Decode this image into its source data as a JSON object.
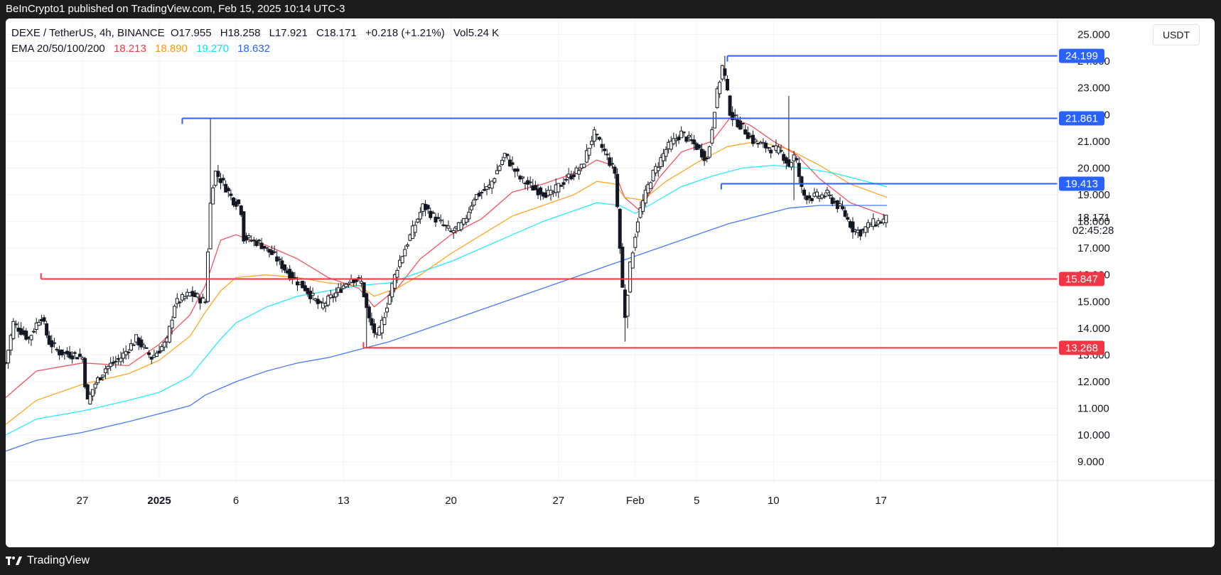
{
  "header": {
    "published": "BeInCrypto1 published on TradingView.com, Feb 15, 2025 10:14 UTC-3"
  },
  "footer": {
    "brand": "TradingView"
  },
  "currency_button": "USDT",
  "legend": {
    "symbol": "DEXE / TetherUS, 4h, BINANCE",
    "open_label": "O",
    "open": "17.955",
    "high_label": "H",
    "high": "18.258",
    "low_label": "L",
    "low": "17.921",
    "close_label": "C",
    "close": "18.171",
    "change": "+0.218 (+1.21%)",
    "volume_label": "Vol",
    "volume": "5.24 K",
    "ema_label": "EMA 20/50/100/200",
    "ema20": "18.213",
    "ema50": "18.890",
    "ema100": "19.270",
    "ema200": "18.632"
  },
  "colors": {
    "ema20": "#f23645",
    "ema50": "#ff9800",
    "ema100": "#00e5ff",
    "ema200": "#2962ff",
    "resistance": "#2962ff",
    "support": "#f23645",
    "candle": "#131722"
  },
  "price_axis": {
    "current_price": "18.171",
    "countdown": "02:45:28"
  },
  "chart_data": {
    "type": "candlestick",
    "title": "DEXE / TetherUS, 4h, BINANCE",
    "ylim": [
      8.3,
      25.6
    ],
    "y_ticks": [
      "9.000",
      "10.000",
      "11.000",
      "12.000",
      "13.000",
      "14.000",
      "15.000",
      "16.000",
      "17.000",
      "18.000",
      "19.000",
      "20.000",
      "21.000",
      "22.000",
      "23.000",
      "24.000",
      "25.000"
    ],
    "x_ticks": [
      "27",
      "2025",
      "6",
      "13",
      "20",
      "27",
      "Feb",
      "5",
      "10",
      "17"
    ],
    "x_tick_days": [
      -5,
      0,
      5,
      12,
      19,
      26,
      31,
      35,
      40,
      47
    ],
    "xlim_days": [
      -10,
      58.5
    ],
    "grid": true,
    "levels": [
      {
        "label": "24.199",
        "value": 24.199,
        "type": "resistance",
        "from_day": 37.0
      },
      {
        "label": "21.861",
        "value": 21.861,
        "type": "resistance",
        "from_day": 1.5
      },
      {
        "label": "19.413",
        "value": 19.413,
        "type": "resistance",
        "from_day": 36.6
      },
      {
        "label": "15.847",
        "value": 15.847,
        "type": "support",
        "from_day": -7.7
      },
      {
        "label": "13.268",
        "value": 13.268,
        "type": "support",
        "from_day": 13.3
      }
    ],
    "price_anchors": [
      [
        -10,
        12.7
      ],
      [
        -9.5,
        14.2
      ],
      [
        -8.5,
        13.6
      ],
      [
        -7.7,
        14.5
      ],
      [
        -7.2,
        13.5
      ],
      [
        -6.5,
        13.1
      ],
      [
        -5.5,
        13.0
      ],
      [
        -5.0,
        12.9
      ],
      [
        -4.7,
        11.2
      ],
      [
        -4.2,
        11.9
      ],
      [
        -3.5,
        12.5
      ],
      [
        -2.5,
        12.9
      ],
      [
        -1.5,
        13.6
      ],
      [
        -0.5,
        12.9
      ],
      [
        0.5,
        13.5
      ],
      [
        1.0,
        14.9
      ],
      [
        2.0,
        15.3
      ],
      [
        3.0,
        15.0
      ],
      [
        3.3,
        18.5
      ],
      [
        3.6,
        19.9
      ],
      [
        4.2,
        19.4
      ],
      [
        4.8,
        18.8
      ],
      [
        5.3,
        18.6
      ],
      [
        5.5,
        17.4
      ],
      [
        6.5,
        17.2
      ],
      [
        7.5,
        16.7
      ],
      [
        8.5,
        16.0
      ],
      [
        9.5,
        15.5
      ],
      [
        10.5,
        14.8
      ],
      [
        11.5,
        15.3
      ],
      [
        12.5,
        15.9
      ],
      [
        13.2,
        15.7
      ],
      [
        13.6,
        14.4
      ],
      [
        14.2,
        13.6
      ],
      [
        14.6,
        14.4
      ],
      [
        15.5,
        16.3
      ],
      [
        16.3,
        17.4
      ],
      [
        17.2,
        18.6
      ],
      [
        18.0,
        18.1
      ],
      [
        19.0,
        17.6
      ],
      [
        19.8,
        17.9
      ],
      [
        20.5,
        18.9
      ],
      [
        21.5,
        19.3
      ],
      [
        22.5,
        20.5
      ],
      [
        23.5,
        19.6
      ],
      [
        24.5,
        19.2
      ],
      [
        25.5,
        19.0
      ],
      [
        26.5,
        19.6
      ],
      [
        27.5,
        20.0
      ],
      [
        28.3,
        21.3
      ],
      [
        29.0,
        20.6
      ],
      [
        29.7,
        19.8
      ],
      [
        30.0,
        17.0
      ],
      [
        30.3,
        14.3
      ],
      [
        30.7,
        16.5
      ],
      [
        31.2,
        18.2
      ],
      [
        32.0,
        19.6
      ],
      [
        33.0,
        20.7
      ],
      [
        34.0,
        21.3
      ],
      [
        35.0,
        20.8
      ],
      [
        35.7,
        20.3
      ],
      [
        36.2,
        22.4
      ],
      [
        36.7,
        23.9
      ],
      [
        37.2,
        22.0
      ],
      [
        38.0,
        21.5
      ],
      [
        38.7,
        21.0
      ],
      [
        39.5,
        20.8
      ],
      [
        40.5,
        20.6
      ],
      [
        41.0,
        20.1
      ],
      [
        41.4,
        20.5
      ],
      [
        41.9,
        19.0
      ],
      [
        42.5,
        18.9
      ],
      [
        43.5,
        19.0
      ],
      [
        44.5,
        18.4
      ],
      [
        45.2,
        17.7
      ],
      [
        45.7,
        17.6
      ],
      [
        46.3,
        17.9
      ],
      [
        47.0,
        18.0
      ],
      [
        47.4,
        18.1
      ]
    ],
    "spikes": [
      {
        "day": 3.35,
        "high": 21.861
      },
      {
        "day": 30.3,
        "low": 13.5
      },
      {
        "day": 30.5,
        "low": 14.0
      },
      {
        "day": 36.8,
        "high": 24.199
      },
      {
        "day": 41.05,
        "high": 22.7
      },
      {
        "day": 41.3,
        "low": 18.8
      },
      {
        "day": 13.5,
        "low": 13.268
      }
    ],
    "ema": {
      "ema20": {
        "name": "EMA 20",
        "points": [
          [
            -10,
            11.4
          ],
          [
            -8,
            12.4
          ],
          [
            -5,
            12.7
          ],
          [
            -2,
            12.6
          ],
          [
            0,
            13.4
          ],
          [
            2,
            14.5
          ],
          [
            3,
            15.6
          ],
          [
            4,
            17.3
          ],
          [
            5,
            17.5
          ],
          [
            7,
            17.1
          ],
          [
            9,
            16.6
          ],
          [
            11,
            15.9
          ],
          [
            13,
            15.5
          ],
          [
            14,
            14.8
          ],
          [
            15.5,
            15.5
          ],
          [
            17,
            16.6
          ],
          [
            19,
            17.5
          ],
          [
            21,
            18.1
          ],
          [
            23,
            19.1
          ],
          [
            25,
            19.4
          ],
          [
            27,
            19.8
          ],
          [
            28.5,
            20.3
          ],
          [
            29.5,
            20.1
          ],
          [
            30.3,
            18.9
          ],
          [
            31.3,
            18.4
          ],
          [
            32.5,
            19.6
          ],
          [
            34,
            20.6
          ],
          [
            36,
            21.0
          ],
          [
            37.2,
            21.9
          ],
          [
            38.5,
            21.6
          ],
          [
            40,
            21.0
          ],
          [
            41.5,
            20.5
          ],
          [
            43,
            19.6
          ],
          [
            45,
            18.7
          ],
          [
            47.4,
            18.2
          ]
        ]
      },
      "ema50": {
        "name": "EMA 50",
        "points": [
          [
            -10,
            10.4
          ],
          [
            -8,
            11.3
          ],
          [
            -5,
            11.9
          ],
          [
            -2,
            12.3
          ],
          [
            0,
            12.8
          ],
          [
            2,
            13.7
          ],
          [
            3,
            14.6
          ],
          [
            4,
            15.4
          ],
          [
            5,
            15.9
          ],
          [
            7,
            16.0
          ],
          [
            9,
            15.9
          ],
          [
            11,
            15.7
          ],
          [
            13,
            15.6
          ],
          [
            14,
            15.2
          ],
          [
            15.5,
            15.5
          ],
          [
            17,
            16.0
          ],
          [
            19,
            16.8
          ],
          [
            21,
            17.5
          ],
          [
            23,
            18.2
          ],
          [
            25,
            18.6
          ],
          [
            27,
            19.0
          ],
          [
            28.5,
            19.5
          ],
          [
            29.7,
            19.4
          ],
          [
            30.3,
            18.9
          ],
          [
            31.5,
            18.8
          ],
          [
            33,
            19.5
          ],
          [
            35,
            20.2
          ],
          [
            37,
            20.8
          ],
          [
            39,
            21.0
          ],
          [
            41,
            20.7
          ],
          [
            43,
            20.1
          ],
          [
            45,
            19.4
          ],
          [
            47.4,
            18.9
          ]
        ]
      },
      "ema100": {
        "name": "EMA 100",
        "points": [
          [
            -10,
            10.0
          ],
          [
            -8,
            10.6
          ],
          [
            -5,
            10.9
          ],
          [
            -2,
            11.3
          ],
          [
            0,
            11.6
          ],
          [
            2,
            12.2
          ],
          [
            3,
            12.9
          ],
          [
            4,
            13.6
          ],
          [
            5,
            14.2
          ],
          [
            7,
            14.8
          ],
          [
            9,
            15.2
          ],
          [
            11,
            15.4
          ],
          [
            13,
            15.6
          ],
          [
            15,
            15.7
          ],
          [
            17,
            16.1
          ],
          [
            19,
            16.5
          ],
          [
            21,
            17.0
          ],
          [
            23,
            17.5
          ],
          [
            25,
            18.0
          ],
          [
            27,
            18.4
          ],
          [
            28.5,
            18.7
          ],
          [
            30,
            18.6
          ],
          [
            31,
            18.3
          ],
          [
            32.5,
            18.8
          ],
          [
            34,
            19.3
          ],
          [
            36,
            19.7
          ],
          [
            38,
            20.0
          ],
          [
            40,
            20.1
          ],
          [
            42,
            20.0
          ],
          [
            44,
            19.8
          ],
          [
            47.4,
            19.3
          ]
        ]
      },
      "ema200": {
        "name": "EMA 200",
        "points": [
          [
            -10,
            9.4
          ],
          [
            -8,
            9.8
          ],
          [
            -5,
            10.1
          ],
          [
            -2,
            10.5
          ],
          [
            0,
            10.8
          ],
          [
            2,
            11.1
          ],
          [
            3,
            11.5
          ],
          [
            5,
            12.0
          ],
          [
            7,
            12.4
          ],
          [
            9,
            12.7
          ],
          [
            11,
            12.9
          ],
          [
            13,
            13.2
          ],
          [
            15,
            13.5
          ],
          [
            17,
            13.9
          ],
          [
            19,
            14.3
          ],
          [
            21,
            14.7
          ],
          [
            23,
            15.1
          ],
          [
            25,
            15.5
          ],
          [
            27,
            15.9
          ],
          [
            29,
            16.3
          ],
          [
            31,
            16.7
          ],
          [
            33,
            17.1
          ],
          [
            35,
            17.5
          ],
          [
            37,
            17.9
          ],
          [
            39,
            18.2
          ],
          [
            41,
            18.5
          ],
          [
            43,
            18.6
          ],
          [
            45,
            18.6
          ],
          [
            47.4,
            18.6
          ]
        ]
      }
    }
  }
}
